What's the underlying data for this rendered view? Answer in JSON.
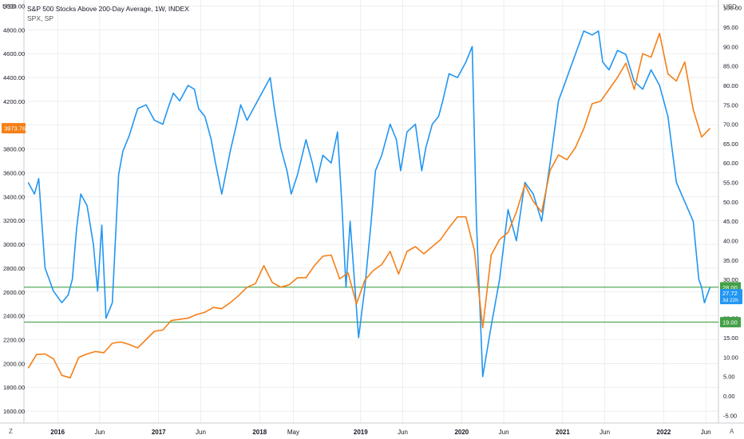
{
  "header": {
    "title": "S&P 500 Stocks Above 200-Day Average, 1W, INDEX",
    "subtitle": "SPX, SP"
  },
  "axes": {
    "left_unit": "USD",
    "right_unit": "USD",
    "left_ticks": [
      "1600.00",
      "1800.00",
      "2000.00",
      "2200.00",
      "2400.00",
      "2600.00",
      "2800.00",
      "3000.00",
      "3200.00",
      "3400.00",
      "3600.00",
      "3800.00",
      "4000.00",
      "4200.00",
      "4400.00",
      "4600.00",
      "4800.00",
      "5000.00"
    ],
    "right_ticks": [
      "-5.00",
      "0.00",
      "5.00",
      "10.00",
      "15.00",
      "20.00",
      "25.00",
      "30.00",
      "35.00",
      "40.00",
      "45.00",
      "50.00",
      "55.00",
      "60.00",
      "65.00",
      "70.00",
      "75.00",
      "80.00",
      "85.00",
      "90.00",
      "95.00",
      "100.00"
    ],
    "x_ticks": [
      "2016",
      "Jun",
      "2017",
      "Jun",
      "2018",
      "May",
      "2019",
      "Jun",
      "2020",
      "Jun",
      "2021",
      "Jun",
      "2022",
      "Jun"
    ],
    "corner_left": "Z",
    "corner_right": "A"
  },
  "colors": {
    "breadth": "#2196f3",
    "spx": "#f57f17",
    "hline": "#43a047",
    "grid": "#e1e3e6"
  },
  "badges": {
    "spx_last": "3973.76",
    "level_high": "28.00",
    "breadth_last": "27.72",
    "countdown": "3d 22h",
    "level_low": "19.00"
  },
  "chart_data": {
    "type": "line",
    "title": "S&P 500 Stocks Above 200-Day Average, 1W, INDEX",
    "x_range": [
      "2015-09",
      "2022-06"
    ],
    "ylim_left": [
      1500,
      5050
    ],
    "ylim_right": [
      -7,
      102
    ],
    "reference_lines_right": [
      28.0,
      19.0
    ],
    "series": [
      {
        "name": "S&P 500 Stocks Above 200-Day Average",
        "axis": "right",
        "points": [
          [
            "2015-09",
            55
          ],
          [
            "2015-10",
            52
          ],
          [
            "2015-10",
            56
          ],
          [
            "2015-11",
            33
          ],
          [
            "2015-12",
            27
          ],
          [
            "2016-01",
            24
          ],
          [
            "2016-02",
            26
          ],
          [
            "2016-02",
            30
          ],
          [
            "2016-03",
            43
          ],
          [
            "2016-03",
            52
          ],
          [
            "2016-04",
            49
          ],
          [
            "2016-05",
            39
          ],
          [
            "2016-05",
            27
          ],
          [
            "2016-06",
            44
          ],
          [
            "2016-06",
            20
          ],
          [
            "2016-07",
            24
          ],
          [
            "2016-08",
            57
          ],
          [
            "2016-08",
            63
          ],
          [
            "2016-09",
            67
          ],
          [
            "2016-10",
            74
          ],
          [
            "2016-11",
            75
          ],
          [
            "2016-12",
            71
          ],
          [
            "2017-01",
            70
          ],
          [
            "2017-02",
            75
          ],
          [
            "2017-02",
            78
          ],
          [
            "2017-03",
            76
          ],
          [
            "2017-04",
            80
          ],
          [
            "2017-05",
            79
          ],
          [
            "2017-05",
            74
          ],
          [
            "2017-06",
            72
          ],
          [
            "2017-07",
            66
          ],
          [
            "2017-07",
            60
          ],
          [
            "2017-08",
            52
          ],
          [
            "2017-09",
            63
          ],
          [
            "2017-10",
            70
          ],
          [
            "2017-10",
            75
          ],
          [
            "2017-11",
            71
          ],
          [
            "2017-12",
            75
          ],
          [
            "2018-01",
            78
          ],
          [
            "2018-01",
            80
          ],
          [
            "2018-02",
            82
          ],
          [
            "2018-02",
            74
          ],
          [
            "2018-03",
            64
          ],
          [
            "2018-04",
            58
          ],
          [
            "2018-04",
            52
          ],
          [
            "2018-05",
            57
          ],
          [
            "2018-06",
            66
          ],
          [
            "2018-07",
            60
          ],
          [
            "2018-07",
            55
          ],
          [
            "2018-08",
            62
          ],
          [
            "2018-09",
            60
          ],
          [
            "2018-10",
            68
          ],
          [
            "2018-10",
            50
          ],
          [
            "2018-11",
            28
          ],
          [
            "2018-11",
            45
          ],
          [
            "2018-12",
            30
          ],
          [
            "2018-12",
            15
          ],
          [
            "2019-01",
            28
          ],
          [
            "2019-02",
            45
          ],
          [
            "2019-02",
            58
          ],
          [
            "2019-03",
            62
          ],
          [
            "2019-04",
            70
          ],
          [
            "2019-05",
            66
          ],
          [
            "2019-05",
            58
          ],
          [
            "2019-06",
            68
          ],
          [
            "2019-07",
            70
          ],
          [
            "2019-08",
            58
          ],
          [
            "2019-08",
            64
          ],
          [
            "2019-09",
            70
          ],
          [
            "2019-10",
            72
          ],
          [
            "2019-10",
            76
          ],
          [
            "2019-11",
            83
          ],
          [
            "2019-12",
            82
          ],
          [
            "2020-01",
            86
          ],
          [
            "2020-02",
            90
          ],
          [
            "2020-02",
            45
          ],
          [
            "2020-03",
            5
          ],
          [
            "2020-04",
            18
          ],
          [
            "2020-05",
            30
          ],
          [
            "2020-06",
            48
          ],
          [
            "2020-07",
            40
          ],
          [
            "2020-08",
            55
          ],
          [
            "2020-09",
            52
          ],
          [
            "2020-10",
            45
          ],
          [
            "2020-11",
            60
          ],
          [
            "2020-12",
            76
          ],
          [
            "2021-01",
            82
          ],
          [
            "2021-02",
            88
          ],
          [
            "2021-03",
            94
          ],
          [
            "2021-04",
            93
          ],
          [
            "2021-05",
            94
          ],
          [
            "2021-05",
            86
          ],
          [
            "2021-06",
            84
          ],
          [
            "2021-07",
            89
          ],
          [
            "2021-08",
            88
          ],
          [
            "2021-09",
            81
          ],
          [
            "2021-10",
            79
          ],
          [
            "2021-11",
            84
          ],
          [
            "2021-12",
            80
          ],
          [
            "2022-01",
            72
          ],
          [
            "2022-02",
            55
          ],
          [
            "2022-03",
            50
          ],
          [
            "2022-04",
            45
          ],
          [
            "2022-05",
            30
          ],
          [
            "2022-05",
            28
          ],
          [
            "2022-05",
            24
          ],
          [
            "2022-06",
            28
          ]
        ]
      },
      {
        "name": "SPX",
        "axis": "left",
        "points": [
          [
            "2015-09",
            1960
          ],
          [
            "2015-10",
            2075
          ],
          [
            "2015-11",
            2080
          ],
          [
            "2015-12",
            2040
          ],
          [
            "2016-01",
            1900
          ],
          [
            "2016-02",
            1880
          ],
          [
            "2016-03",
            2050
          ],
          [
            "2016-04",
            2080
          ],
          [
            "2016-05",
            2100
          ],
          [
            "2016-06",
            2090
          ],
          [
            "2016-07",
            2170
          ],
          [
            "2016-08",
            2180
          ],
          [
            "2016-09",
            2160
          ],
          [
            "2016-10",
            2130
          ],
          [
            "2016-11",
            2200
          ],
          [
            "2016-12",
            2270
          ],
          [
            "2017-01",
            2280
          ],
          [
            "2017-02",
            2360
          ],
          [
            "2017-03",
            2370
          ],
          [
            "2017-04",
            2380
          ],
          [
            "2017-05",
            2410
          ],
          [
            "2017-06",
            2430
          ],
          [
            "2017-07",
            2470
          ],
          [
            "2017-08",
            2460
          ],
          [
            "2017-09",
            2510
          ],
          [
            "2017-10",
            2570
          ],
          [
            "2017-11",
            2640
          ],
          [
            "2017-12",
            2670
          ],
          [
            "2018-01",
            2820
          ],
          [
            "2018-02",
            2680
          ],
          [
            "2018-03",
            2640
          ],
          [
            "2018-04",
            2660
          ],
          [
            "2018-05",
            2720
          ],
          [
            "2018-06",
            2720
          ],
          [
            "2018-07",
            2820
          ],
          [
            "2018-08",
            2900
          ],
          [
            "2018-09",
            2910
          ],
          [
            "2018-10",
            2710
          ],
          [
            "2018-11",
            2760
          ],
          [
            "2018-12",
            2500
          ],
          [
            "2019-01",
            2700
          ],
          [
            "2019-02",
            2780
          ],
          [
            "2019-03",
            2830
          ],
          [
            "2019-04",
            2940
          ],
          [
            "2019-05",
            2750
          ],
          [
            "2019-06",
            2940
          ],
          [
            "2019-07",
            2980
          ],
          [
            "2019-08",
            2920
          ],
          [
            "2019-09",
            2980
          ],
          [
            "2019-10",
            3040
          ],
          [
            "2019-11",
            3140
          ],
          [
            "2019-12",
            3230
          ],
          [
            "2020-01",
            3230
          ],
          [
            "2020-02",
            2950
          ],
          [
            "2020-03",
            2300
          ],
          [
            "2020-04",
            2910
          ],
          [
            "2020-05",
            3040
          ],
          [
            "2020-06",
            3100
          ],
          [
            "2020-07",
            3270
          ],
          [
            "2020-08",
            3500
          ],
          [
            "2020-09",
            3360
          ],
          [
            "2020-10",
            3270
          ],
          [
            "2020-11",
            3620
          ],
          [
            "2020-12",
            3750
          ],
          [
            "2021-01",
            3710
          ],
          [
            "2021-02",
            3810
          ],
          [
            "2021-03",
            3970
          ],
          [
            "2021-04",
            4180
          ],
          [
            "2021-05",
            4200
          ],
          [
            "2021-06",
            4300
          ],
          [
            "2021-07",
            4400
          ],
          [
            "2021-08",
            4520
          ],
          [
            "2021-09",
            4300
          ],
          [
            "2021-10",
            4600
          ],
          [
            "2021-11",
            4570
          ],
          [
            "2021-12",
            4770
          ],
          [
            "2022-01",
            4430
          ],
          [
            "2022-02",
            4370
          ],
          [
            "2022-03",
            4530
          ],
          [
            "2022-04",
            4130
          ],
          [
            "2022-05",
            3900
          ],
          [
            "2022-06",
            3973.76
          ]
        ]
      }
    ]
  }
}
